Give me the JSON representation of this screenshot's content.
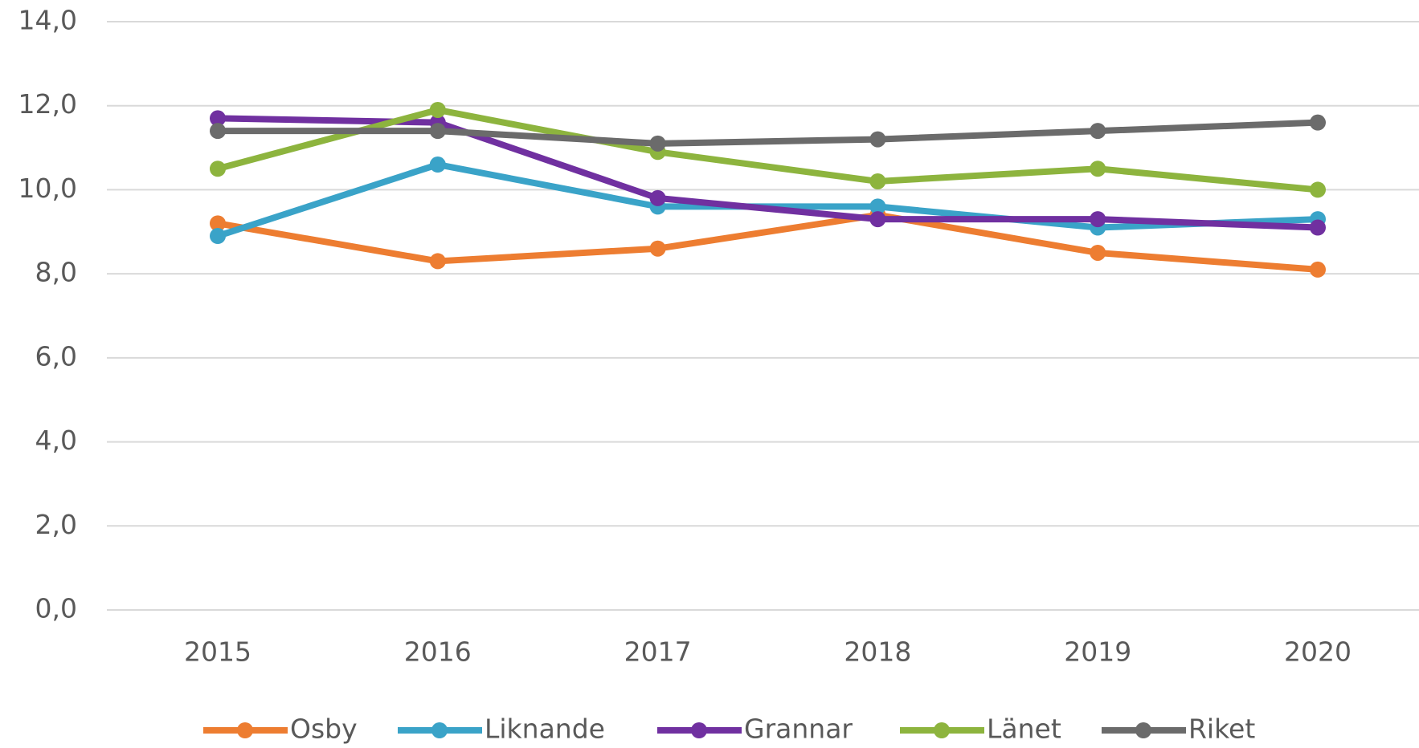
{
  "chart_data": {
    "type": "line",
    "categories": [
      "2015",
      "2016",
      "2017",
      "2018",
      "2019",
      "2020"
    ],
    "series": [
      {
        "name": "Osby",
        "color": "#ED7D31",
        "values": [
          9.2,
          8.3,
          8.6,
          9.4,
          8.5,
          8.1
        ]
      },
      {
        "name": "Liknande",
        "color": "#3AA3C8",
        "values": [
          8.9,
          10.6,
          9.6,
          9.6,
          9.1,
          9.3
        ]
      },
      {
        "name": "Grannar",
        "color": "#7030A0",
        "values": [
          11.7,
          11.6,
          9.8,
          9.3,
          9.3,
          9.1
        ]
      },
      {
        "name": "Länet",
        "color": "#8DB43E",
        "values": [
          10.5,
          11.9,
          10.9,
          10.2,
          10.5,
          10.0
        ]
      },
      {
        "name": "Riket",
        "color": "#6B6B6B",
        "values": [
          11.4,
          11.4,
          11.1,
          11.2,
          11.4,
          11.6
        ]
      }
    ],
    "ylim": [
      0,
      14
    ],
    "yticks": [
      {
        "value": 0,
        "label": "0,0"
      },
      {
        "value": 2,
        "label": "2,0"
      },
      {
        "value": 4,
        "label": "4,0"
      },
      {
        "value": 6,
        "label": "6,0"
      },
      {
        "value": 8,
        "label": "8,0"
      },
      {
        "value": 10,
        "label": "10,0"
      },
      {
        "value": 12,
        "label": "12,0"
      },
      {
        "value": 14,
        "label": "14,0"
      }
    ],
    "grid": true,
    "legend": "bottom"
  }
}
